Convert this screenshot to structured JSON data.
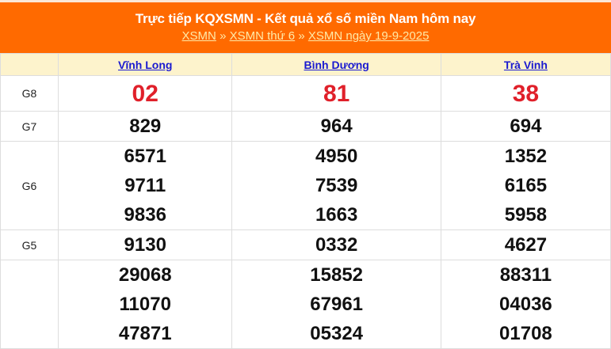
{
  "header": {
    "title": "Trực tiếp KQXSMN - Kết quả xổ số miền Nam hôm nay",
    "breadcrumb": [
      "XSMN",
      "XSMN thứ 6",
      "XSMN ngày 19-9-2025"
    ],
    "separator": "»"
  },
  "provinces": [
    "Vĩnh Long",
    "Bình Dương",
    "Trà Vinh"
  ],
  "rows": [
    {
      "label": "G8",
      "values": [
        [
          "02"
        ],
        [
          "81"
        ],
        [
          "38"
        ]
      ]
    },
    {
      "label": "G7",
      "values": [
        [
          "829"
        ],
        [
          "964"
        ],
        [
          "694"
        ]
      ]
    },
    {
      "label": "G6",
      "values": [
        [
          "6571",
          "9711",
          "9836"
        ],
        [
          "4950",
          "7539",
          "1663"
        ],
        [
          "1352",
          "6165",
          "5958"
        ]
      ]
    },
    {
      "label": "G5",
      "values": [
        [
          "9130"
        ],
        [
          "0332"
        ],
        [
          "4627"
        ]
      ]
    },
    {
      "label": "",
      "values": [
        [
          "29068",
          "11070",
          "47871"
        ],
        [
          "15852",
          "67961",
          "05324"
        ],
        [
          "88311",
          "04036",
          "01708"
        ]
      ]
    }
  ],
  "colors": {
    "header_bg": "#ff6a00",
    "special_prize": "#e0202a",
    "province_link": "#1a1ad0",
    "header_row_bg": "#fdf3cc"
  }
}
